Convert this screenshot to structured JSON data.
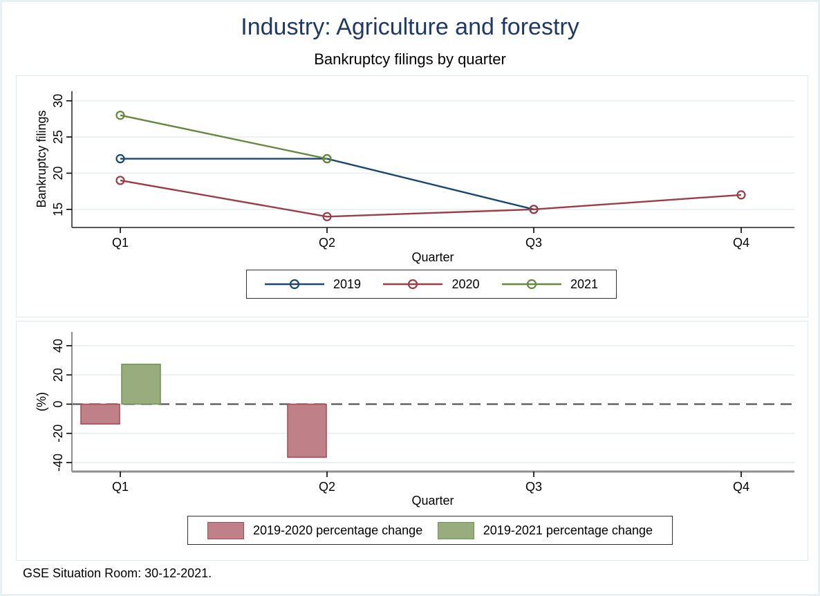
{
  "header": {
    "title": "Industry: Agriculture and forestry",
    "subtitle": "Bankruptcy filings by quarter"
  },
  "footer": {
    "note": "GSE Situation Room: 30-12-2021."
  },
  "colors": {
    "title_text": "#1f3864",
    "navy": "#1a476f",
    "maroon": "#9c3d46",
    "green": "#66883d",
    "bar_red_fill": "#c08087",
    "bar_red_border": "#a04a53",
    "bar_green_fill": "#98ac7e",
    "bar_green_border": "#6d9150",
    "grid": "#e9f1f3",
    "axis_dark": "#3d3d3d",
    "axis_gray": "#8f8f8f",
    "zero_dash": "#555555",
    "tick": "#000000",
    "panel_border": "#dceaed",
    "page_border": "#e7f0f2"
  },
  "chart_data": [
    {
      "type": "line",
      "title": "Bankruptcy filings by quarter",
      "categories": [
        "Q1",
        "Q2",
        "Q3",
        "Q4"
      ],
      "series": [
        {
          "name": "2019",
          "color_key": "navy",
          "values": [
            22,
            22,
            15,
            null
          ]
        },
        {
          "name": "2020",
          "color_key": "maroon",
          "values": [
            19,
            14,
            15,
            17
          ]
        },
        {
          "name": "2021",
          "color_key": "green",
          "values": [
            28,
            22,
            null,
            null
          ]
        }
      ],
      "xlabel": "Quarter",
      "ylabel": "Bankruptcy filings",
      "yticks": [
        15,
        20,
        25,
        30
      ],
      "ylim": [
        12.5,
        31.3
      ],
      "grid": true,
      "marker": "hollow-circle",
      "legend_position": "bottom-boxed"
    },
    {
      "type": "bar",
      "categories": [
        "Q1",
        "Q2",
        "Q3",
        "Q4"
      ],
      "series": [
        {
          "name": "2019-2020 percentage change",
          "color_key": "bar_red",
          "values": [
            -13.6,
            -36.4,
            0,
            null
          ]
        },
        {
          "name": "2019-2021 percentage change",
          "color_key": "bar_green",
          "values": [
            27.3,
            0,
            null,
            null
          ]
        }
      ],
      "xlabel": "Quarter",
      "ylabel": "(%)",
      "yticks": [
        -40,
        -20,
        0,
        20,
        40
      ],
      "ylim": [
        -47,
        48
      ],
      "grid": true,
      "zero_line": "dashed",
      "legend_position": "bottom-boxed"
    }
  ]
}
